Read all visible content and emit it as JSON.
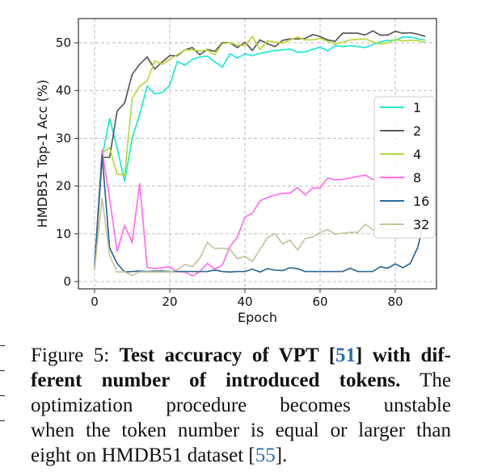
{
  "chart_data": {
    "type": "line",
    "xlabel": "Epoch",
    "ylabel": "HMDB51 Top-1 Acc (%)",
    "xlim": [
      -4,
      91
    ],
    "ylim": [
      -1.5,
      55
    ],
    "xticks": [
      0,
      20,
      40,
      60,
      80
    ],
    "yticks": [
      0,
      10,
      20,
      30,
      40,
      50
    ],
    "grid": true,
    "legend_position": "right",
    "x": [
      0,
      2,
      4,
      6,
      8,
      10,
      12,
      14,
      16,
      18,
      20,
      22,
      24,
      26,
      28,
      30,
      32,
      34,
      36,
      38,
      40,
      42,
      44,
      46,
      48,
      50,
      52,
      54,
      56,
      58,
      60,
      62,
      64,
      66,
      68,
      70,
      72,
      74,
      76,
      78,
      80,
      82,
      84,
      86,
      88
    ],
    "series": [
      {
        "name": "1",
        "color": "#1ee8cf",
        "values": [
          3,
          26,
          34.2,
          28,
          21,
          30,
          35,
          40.9,
          39.3,
          39.6,
          41.1,
          46.1,
          45.3,
          46.5,
          47,
          47.2,
          46,
          44.9,
          47.7,
          46.8,
          47.7,
          47.3,
          47.8,
          48.1,
          48.4,
          48.5,
          48.7,
          48,
          48.1,
          48.6,
          49.1,
          48.3,
          49.4,
          49.2,
          49.4,
          49.2,
          49,
          49.6,
          50.2,
          50.5,
          50.5,
          51.2,
          51.2,
          50.9,
          50.5
        ]
      },
      {
        "name": "2",
        "color": "#5a5a5a",
        "values": [
          2.5,
          26,
          26,
          35.7,
          37.4,
          43.4,
          45.5,
          47,
          44.5,
          46,
          47.3,
          47.3,
          48.5,
          49,
          47.5,
          48.6,
          48.2,
          50,
          50,
          49,
          50.1,
          48.4,
          50.6,
          49.8,
          49.2,
          50.5,
          50.8,
          50.8,
          50.9,
          51.7,
          51.3,
          50.6,
          50.3,
          52,
          52,
          52,
          51.6,
          52.5,
          51.6,
          51.6,
          52.4,
          52,
          52.1,
          51.8,
          51.3
        ]
      },
      {
        "name": "4",
        "color": "#b3d93a",
        "values": [
          2.5,
          27,
          28,
          22.5,
          22.3,
          38.3,
          40.9,
          42,
          46.2,
          45.5,
          46.5,
          47.5,
          48.5,
          48.5,
          48.3,
          48.5,
          47.5,
          49.8,
          50,
          49.5,
          49.4,
          51.3,
          48.6,
          50.4,
          50.2,
          49.9,
          50.6,
          51.2,
          50.6,
          50.6,
          50.9,
          50.3,
          49.7,
          50.1,
          50.6,
          50.7,
          50.8,
          50.2,
          49.7,
          50,
          50.7,
          50.4,
          50.5,
          50.5,
          50
        ]
      },
      {
        "name": "8",
        "color": "#ff6ef0",
        "values": [
          3,
          27.6,
          17.4,
          6.3,
          11.7,
          8.2,
          20.6,
          3,
          2.7,
          2.9,
          3.1,
          2.1,
          2,
          1.2,
          2.1,
          3.8,
          2.6,
          3.5,
          7.3,
          9.3,
          13.5,
          14.3,
          16.9,
          17.6,
          18.1,
          18.5,
          18.5,
          19.7,
          18.1,
          19.6,
          19.6,
          21.7,
          21.3,
          21.4,
          21.7,
          22,
          22.3,
          21.4,
          22,
          22.3,
          21.9,
          21.7,
          21.9,
          22,
          22
        ]
      },
      {
        "name": "16",
        "color": "#2e6a96",
        "values": [
          3.5,
          26.6,
          7,
          3.8,
          2,
          2.1,
          2.2,
          2.1,
          2.2,
          2.2,
          2.1,
          2.1,
          2.1,
          2.1,
          2.1,
          2.1,
          2.4,
          2.1,
          2,
          2.1,
          2.1,
          2.6,
          2,
          2.7,
          2.4,
          2.3,
          2.9,
          2.7,
          2.1,
          2.1,
          2.1,
          2.1,
          2.1,
          2.1,
          2.8,
          2.1,
          2.1,
          2.1,
          3.1,
          2.8,
          3.7,
          2.9,
          3.8,
          7.2,
          13.9
        ]
      },
      {
        "name": "32",
        "color": "#c8c49c",
        "values": [
          2.5,
          17.5,
          5.5,
          2,
          2,
          1.3,
          2,
          2,
          2,
          2,
          2,
          2.5,
          3.6,
          3.1,
          4.9,
          8.2,
          6.9,
          7,
          6.8,
          4.8,
          5.3,
          4.2,
          6.7,
          9.2,
          10,
          7.9,
          8.7,
          6.6,
          9,
          9.3,
          10.3,
          10.9,
          9.9,
          10.1,
          10.3,
          10.3,
          12,
          10.9,
          11.1,
          11.1,
          10.8,
          11.1,
          11.3,
          10.8,
          10.5
        ]
      }
    ]
  },
  "caption": {
    "lines": [
      [
        {
          "t": "Figure 5: ",
          "s": ""
        },
        {
          "t": "Test accuracy of VPT [",
          "s": "b"
        },
        {
          "t": "51",
          "s": "b ln"
        },
        {
          "t": "] with dif-",
          "s": "b"
        }
      ],
      [
        {
          "t": "ferent number of introduced tokens.",
          "s": "b"
        },
        {
          "t": "  The",
          "s": ""
        }
      ],
      [
        {
          "t": "optimization procedure becomes unstable",
          "s": ""
        }
      ],
      [
        {
          "t": "when the token number is equal or larger than",
          "s": ""
        }
      ],
      [
        {
          "t": "eight on HMDB51 dataset [",
          "s": ""
        },
        {
          "t": "55",
          "s": "ln"
        },
        {
          "t": "].",
          "s": ""
        }
      ]
    ]
  }
}
